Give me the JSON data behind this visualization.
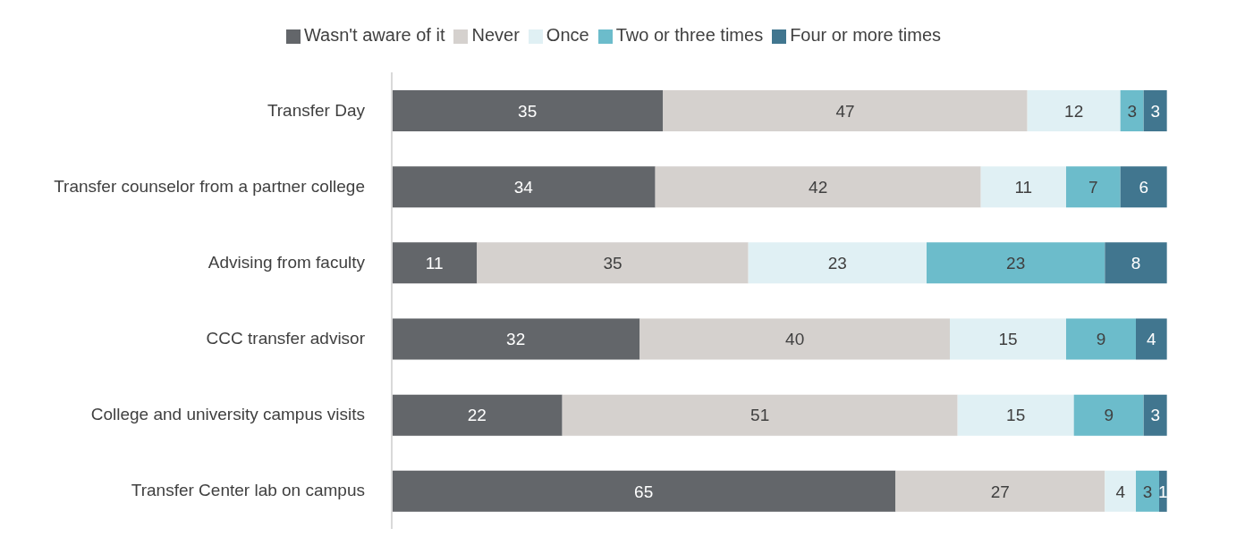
{
  "chart_data": {
    "type": "bar",
    "orientation": "horizontal",
    "stacked": true,
    "data_labels": true,
    "legend": "top",
    "categories": [
      "Transfer Day",
      "Transfer counselor from a partner college",
      "Advising from faculty",
      "CCC transfer advisor",
      "College and university campus visits",
      "Transfer Center lab on campus"
    ],
    "series": [
      {
        "name": "Wasn't aware of it",
        "color": "#63666a",
        "values": [
          35,
          34,
          11,
          32,
          22,
          65
        ]
      },
      {
        "name": "Never",
        "color": "#d5d1ce",
        "values": [
          47,
          42,
          35,
          40,
          51,
          27
        ]
      },
      {
        "name": "Once",
        "color": "#e0f0f4",
        "values": [
          12,
          11,
          23,
          15,
          15,
          4
        ]
      },
      {
        "name": "Two or three times",
        "color": "#6cbccb",
        "values": [
          3,
          7,
          23,
          9,
          9,
          3
        ]
      },
      {
        "name": "Four or more times",
        "color": "#41768f",
        "values": [
          3,
          6,
          8,
          4,
          3,
          1
        ]
      }
    ]
  }
}
